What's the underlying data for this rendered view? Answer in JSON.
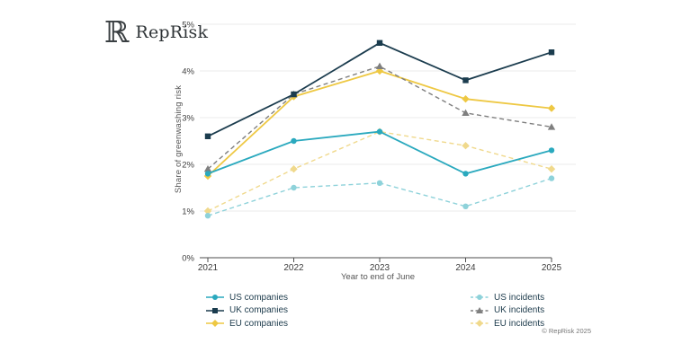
{
  "header": {
    "logo_monogram": "ℝ",
    "logo_text": "RepRisk"
  },
  "chart_data": {
    "type": "line",
    "x": [
      "2021",
      "2022",
      "2023",
      "2024",
      "2025"
    ],
    "xlabel": "Year to end of June",
    "ylabel": "Share of greenwashing risk",
    "ylim": [
      0,
      5
    ],
    "ytick_labels": [
      "0%",
      "1%",
      "2%",
      "3%",
      "4%",
      "5%"
    ],
    "grid": true,
    "legend_position": "bottom",
    "series": [
      {
        "name": "US companies",
        "values": [
          1.8,
          2.5,
          2.7,
          1.8,
          2.3
        ],
        "color": "#2aa9be",
        "style": "solid",
        "marker": "circle"
      },
      {
        "name": "UK companies",
        "values": [
          2.6,
          3.5,
          4.6,
          3.8,
          4.4
        ],
        "color": "#1b3c4e",
        "style": "solid",
        "marker": "square"
      },
      {
        "name": "EU companies",
        "values": [
          1.75,
          3.45,
          4.0,
          3.4,
          3.2
        ],
        "color": "#eec843",
        "style": "solid",
        "marker": "diamond"
      },
      {
        "name": "US incidents",
        "values": [
          0.9,
          1.5,
          1.6,
          1.1,
          1.7
        ],
        "color": "#8ed2da",
        "style": "dashed",
        "marker": "circle"
      },
      {
        "name": "UK incidents",
        "values": [
          1.9,
          3.5,
          4.1,
          3.1,
          2.8
        ],
        "color": "#7f7f7f",
        "style": "dashed",
        "marker": "triangle"
      },
      {
        "name": "EU incidents",
        "values": [
          1.0,
          1.9,
          2.7,
          2.4,
          1.9
        ],
        "color": "#f0d98c",
        "style": "dashed",
        "marker": "diamond"
      }
    ]
  },
  "footer": {
    "copyright": "© RepRisk 2025"
  }
}
